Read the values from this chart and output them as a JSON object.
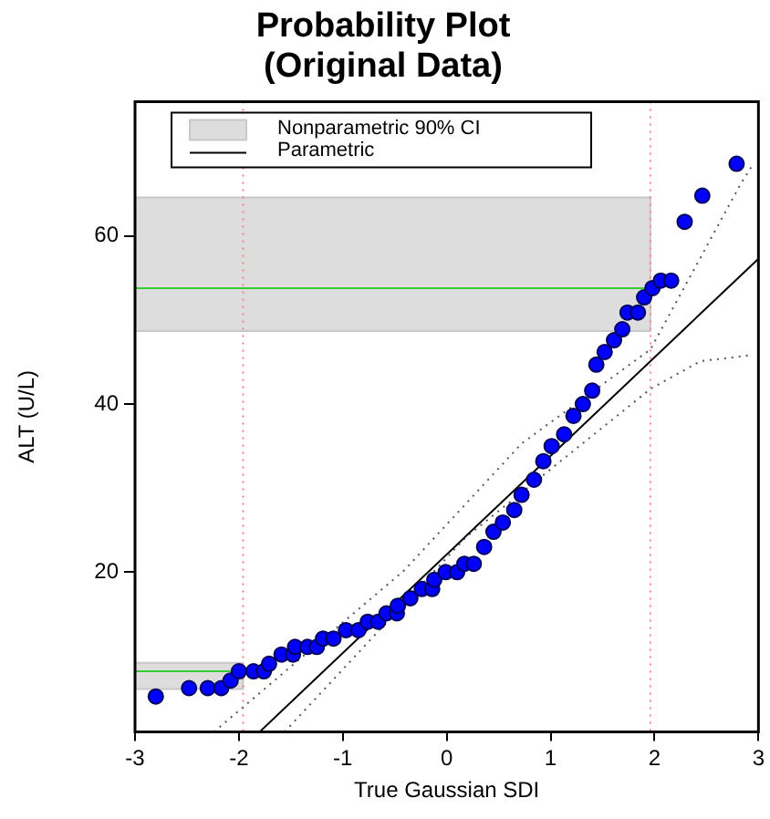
{
  "chart_data": {
    "type": "scatter",
    "title": "Probability Plot\n(Original Data)",
    "xlabel": "True Gaussian SDI",
    "ylabel": "ALT (U/L)",
    "xlim": [
      -3,
      3
    ],
    "xticks": [
      -3,
      -2,
      -1,
      0,
      1,
      2,
      3
    ],
    "ylim": [
      1,
      76
    ],
    "yticks": [
      20,
      40,
      60
    ],
    "grid": false,
    "legend": "top left",
    "marker": "circle",
    "series": [
      {
        "color": "#0000ff",
        "x": [
          -2.8,
          -2.48,
          -2.3,
          -2.17,
          -2.08,
          -2.0,
          -1.86,
          -1.76,
          -1.71,
          -1.59,
          -1.48,
          -1.46,
          -1.34,
          -1.25,
          -1.19,
          -1.09,
          -0.97,
          -0.85,
          -0.76,
          -0.66,
          -0.58,
          -0.48,
          -0.47,
          -0.35,
          -0.24,
          -0.14,
          -0.12,
          -0.01,
          0.1,
          0.17,
          0.26,
          0.36,
          0.45,
          0.54,
          0.65,
          0.72,
          0.84,
          0.93,
          1.01,
          1.13,
          1.22,
          1.31,
          1.4,
          1.44,
          1.52,
          1.61,
          1.69,
          1.74,
          1.84,
          1.9,
          1.98,
          2.06,
          2.16,
          2.29,
          2.46,
          2.79
        ],
        "values": [
          5.2,
          6.2,
          6.2,
          6.2,
          7.1,
          8.2,
          8.2,
          8.2,
          9.1,
          10.2,
          10.2,
          11.1,
          11.1,
          11.1,
          12.1,
          12.1,
          13.1,
          13.1,
          14.1,
          14.1,
          15.1,
          15.1,
          16,
          16.9,
          18,
          18,
          19.1,
          20,
          20,
          21,
          21,
          23,
          24.8,
          25.9,
          27.4,
          29.2,
          31,
          33.2,
          35,
          36.4,
          38.6,
          40,
          41.6,
          44.7,
          46.2,
          47.6,
          48.9,
          50.9,
          50.9,
          52.7,
          53.8,
          54.7,
          54.7,
          61.7,
          64.8,
          68.6
        ]
      },
      {
        "type": "line",
        "name": "Parametric",
        "color": "#000000",
        "marker": "none",
        "x": [
          -1.8,
          3
        ],
        "values": [
          1,
          57.3
        ]
      },
      {
        "type": "line",
        "color": "#555555",
        "marker": "none",
        "line_style": "dotted",
        "x": [
          -2.24,
          -0.41,
          0.72,
          1.96,
          2.82,
          2.93
        ],
        "values": [
          1,
          20.2,
          35.3,
          46.5,
          66,
          68.2
        ]
      },
      {
        "type": "line",
        "color": "#555555",
        "marker": "none",
        "line_style": "dotted",
        "x": [
          -1.56,
          0.18,
          1.96,
          2.44,
          2.91
        ],
        "values": [
          1,
          24.1,
          41.8,
          45.1,
          45.8
        ]
      }
    ],
    "bands": [
      {
        "axis": "y",
        "from": 48.7,
        "to": 64.6,
        "label": "Nonparametric 90% CI",
        "color": "#dddddd"
      },
      {
        "axis": "y",
        "from": 6.1,
        "to": 9.2,
        "color": "#dddddd"
      }
    ],
    "ref_lines": [
      {
        "axis": "x",
        "value": -1.96,
        "color": "#ff8080",
        "line_style": "dotted"
      },
      {
        "axis": "x",
        "value": 1.96,
        "color": "#ff8080",
        "line_style": "dotted"
      },
      {
        "axis": "y",
        "value": 53.8,
        "color": "#33cc33"
      },
      {
        "axis": "y",
        "value": 8.2,
        "color": "#33cc33"
      }
    ]
  }
}
